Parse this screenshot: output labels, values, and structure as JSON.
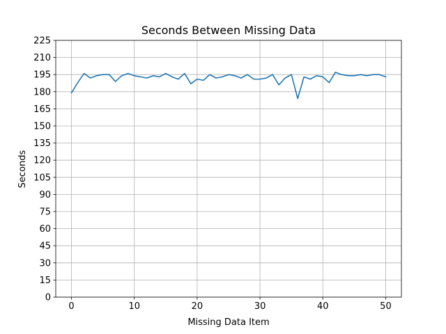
{
  "chart_data": {
    "type": "line",
    "title": "Seconds Between Missing Data",
    "xlabel": "Missing Data Item",
    "ylabel": "Seconds",
    "xlim": [
      -2.5,
      52.5
    ],
    "ylim": [
      0,
      225
    ],
    "xticks": [
      0,
      10,
      20,
      30,
      40,
      50
    ],
    "yticks": [
      0,
      15,
      30,
      45,
      60,
      75,
      90,
      105,
      120,
      135,
      150,
      165,
      180,
      195,
      210,
      225
    ],
    "grid": true,
    "line_color": "#1f77b4",
    "series": [
      {
        "x": [
          0,
          1,
          2,
          3,
          4,
          5,
          6,
          7,
          8,
          9,
          10,
          11,
          12,
          13,
          14,
          15,
          16,
          17,
          18,
          19,
          20,
          21,
          22,
          23,
          24,
          25,
          26,
          27,
          28,
          29,
          30,
          31,
          32,
          33,
          34,
          35,
          36,
          37,
          38,
          39,
          40,
          41,
          42,
          43,
          44,
          45,
          46,
          47,
          48,
          49,
          50
        ],
        "y": [
          179,
          188,
          196,
          192,
          194,
          195,
          195,
          189,
          194,
          196,
          194,
          193,
          192,
          194,
          193,
          196,
          193,
          191,
          196,
          187,
          191,
          190,
          195,
          192,
          193,
          195,
          194,
          192,
          195,
          191,
          191,
          192,
          195,
          186,
          192,
          195,
          174,
          193,
          191,
          194,
          193,
          188,
          197,
          195,
          194,
          194,
          195,
          194,
          195,
          195,
          193
        ]
      }
    ]
  }
}
